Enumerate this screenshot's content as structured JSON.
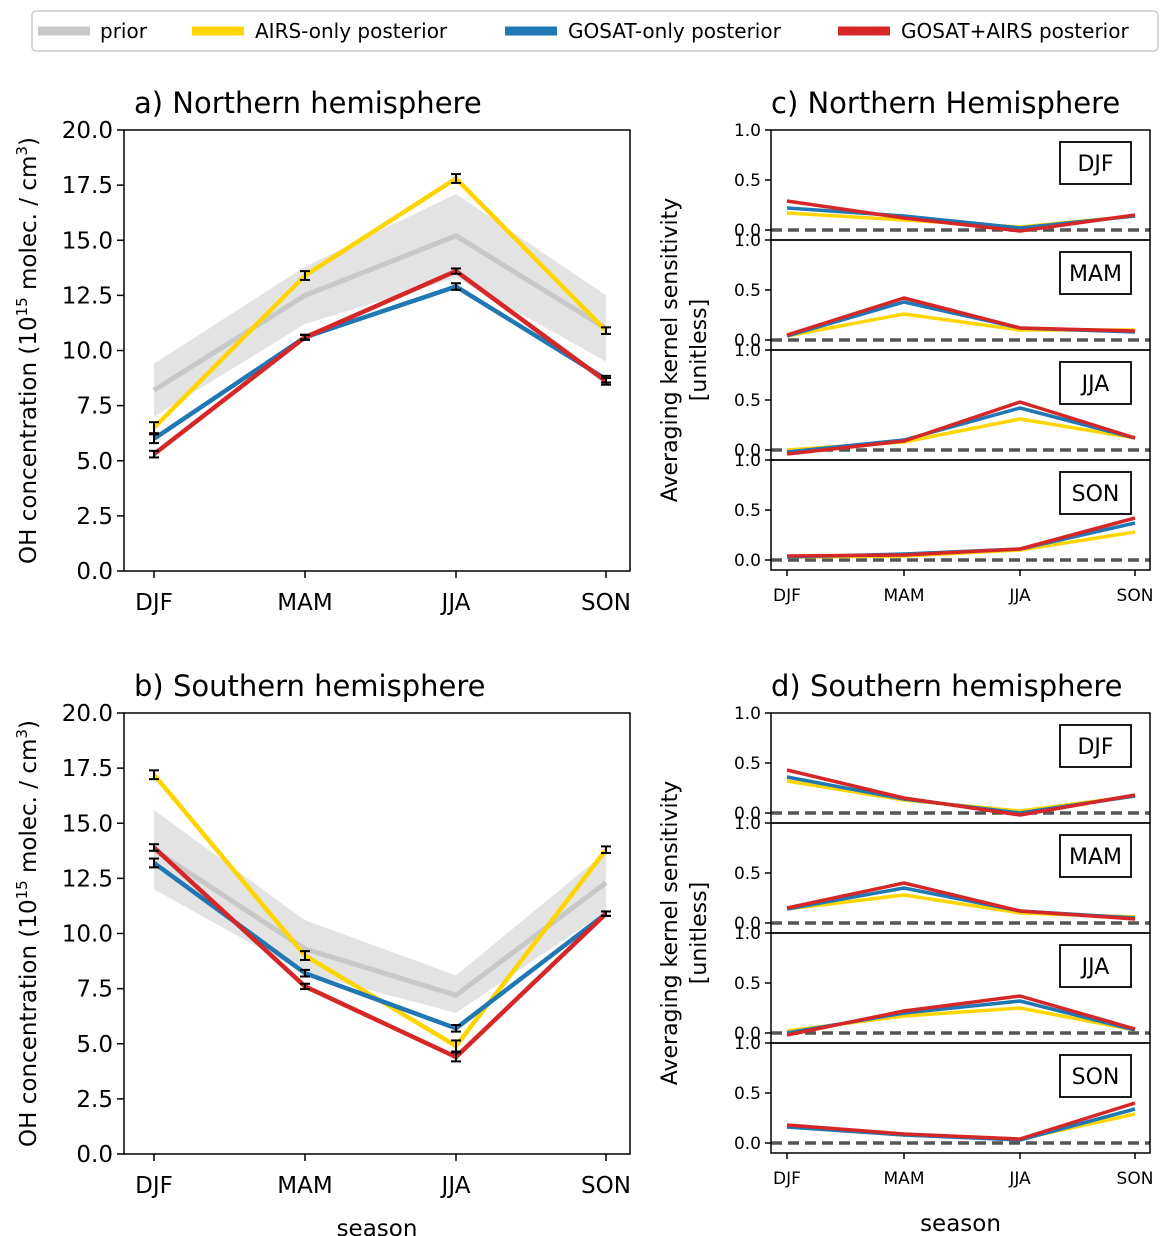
{
  "colors": {
    "prior": "#c8c8c8",
    "prior_band": "#e3e3e3",
    "airs": "#ffd500",
    "gosat": "#1f77b4",
    "both": "#d62728",
    "ref_line": "#555555"
  },
  "legend": [
    {
      "key": "prior",
      "label": "prior"
    },
    {
      "key": "airs",
      "label": "AIRS-only posterior"
    },
    {
      "key": "gosat",
      "label": "GOSAT-only posterior"
    },
    {
      "key": "both",
      "label": "GOSAT+AIRS posterior"
    }
  ],
  "chart_data": [
    {
      "id": "panel-a",
      "type": "line",
      "title": "a) Northern hemisphere",
      "xlabel": "",
      "ylabel": "OH concentration (10^15 molec. / cm^3)",
      "ylabel_base": "OH concentration (10",
      "ylabel_exp1": "15",
      "ylabel_mid": " molec. / cm",
      "ylabel_exp2": "3",
      "ylabel_end": ")",
      "categories": [
        "DJF",
        "MAM",
        "JJA",
        "SON"
      ],
      "ylim": [
        0,
        20
      ],
      "yticks": [
        "0.0",
        "2.5",
        "5.0",
        "7.5",
        "10.0",
        "12.5",
        "15.0",
        "17.5",
        "20.0"
      ],
      "prior": {
        "values": [
          8.2,
          12.5,
          15.2,
          11.0
        ],
        "band_low": [
          7.0,
          11.2,
          13.3,
          9.5
        ],
        "band_high": [
          9.4,
          13.8,
          17.1,
          12.5
        ]
      },
      "series": [
        {
          "key": "airs",
          "values": [
            6.5,
            13.4,
            17.8,
            10.9
          ],
          "err": [
            0.25,
            0.2,
            0.2,
            0.15
          ]
        },
        {
          "key": "gosat",
          "values": [
            6.0,
            10.6,
            12.9,
            8.7
          ],
          "err": [
            0.2,
            0.12,
            0.15,
            0.15
          ]
        },
        {
          "key": "both",
          "values": [
            5.3,
            10.6,
            13.6,
            8.6
          ],
          "err": [
            0.15,
            0.1,
            0.12,
            0.15
          ]
        }
      ]
    },
    {
      "id": "panel-b",
      "type": "line",
      "title": "b) Southern hemisphere",
      "xlabel": "season",
      "ylabel": "OH concentration (10^15 molec. / cm^3)",
      "ylabel_base": "OH concentration (10",
      "ylabel_exp1": "15",
      "ylabel_mid": " molec. / cm",
      "ylabel_exp2": "3",
      "ylabel_end": ")",
      "categories": [
        "DJF",
        "MAM",
        "JJA",
        "SON"
      ],
      "ylim": [
        0,
        20
      ],
      "yticks": [
        "0.0",
        "2.5",
        "5.0",
        "7.5",
        "10.0",
        "12.5",
        "15.0",
        "17.5",
        "20.0"
      ],
      "prior": {
        "values": [
          13.8,
          9.3,
          7.2,
          12.3
        ],
        "band_low": [
          12.0,
          8.2,
          6.4,
          11.0
        ],
        "band_high": [
          15.6,
          10.6,
          8.1,
          13.7
        ]
      },
      "series": [
        {
          "key": "airs",
          "values": [
            17.2,
            9.0,
            4.9,
            13.8
          ],
          "err": [
            0.2,
            0.2,
            0.25,
            0.15
          ]
        },
        {
          "key": "gosat",
          "values": [
            13.2,
            8.2,
            5.7,
            10.9
          ],
          "err": [
            0.2,
            0.15,
            0.15,
            0.1
          ]
        },
        {
          "key": "both",
          "values": [
            13.9,
            7.6,
            4.4,
            10.9
          ],
          "err": [
            0.15,
            0.12,
            0.2,
            0.1
          ]
        }
      ]
    },
    {
      "id": "panel-c",
      "type": "line",
      "title": "c) Northern Hemisphere",
      "xlabel": "",
      "ylabel_line1": "Averaging kernel sensitivity",
      "ylabel_line2": "[unitless]",
      "categories": [
        "DJF",
        "MAM",
        "JJA",
        "SON"
      ],
      "ylim": [
        -0.1,
        1.0
      ],
      "yticks": [
        "0.0",
        "0.5",
        "1.0"
      ],
      "subplots": [
        {
          "label": "DJF",
          "series": [
            {
              "key": "airs",
              "values": [
                0.17,
                0.1,
                0.03,
                0.14
              ]
            },
            {
              "key": "gosat",
              "values": [
                0.22,
                0.14,
                0.02,
                0.14
              ]
            },
            {
              "key": "both",
              "values": [
                0.29,
                0.12,
                -0.01,
                0.15
              ]
            }
          ]
        },
        {
          "label": "MAM",
          "series": [
            {
              "key": "airs",
              "values": [
                0.04,
                0.26,
                0.1,
                0.1
              ]
            },
            {
              "key": "gosat",
              "values": [
                0.04,
                0.38,
                0.12,
                0.08
              ]
            },
            {
              "key": "both",
              "values": [
                0.05,
                0.42,
                0.12,
                0.09
              ]
            }
          ]
        },
        {
          "label": "JJA",
          "series": [
            {
              "key": "airs",
              "values": [
                0.0,
                0.08,
                0.31,
                0.12
              ]
            },
            {
              "key": "gosat",
              "values": [
                -0.02,
                0.1,
                0.42,
                0.12
              ]
            },
            {
              "key": "both",
              "values": [
                -0.04,
                0.09,
                0.48,
                0.12
              ]
            }
          ]
        },
        {
          "label": "SON",
          "series": [
            {
              "key": "airs",
              "values": [
                0.03,
                0.04,
                0.1,
                0.28
              ]
            },
            {
              "key": "gosat",
              "values": [
                0.03,
                0.06,
                0.11,
                0.37
              ]
            },
            {
              "key": "both",
              "values": [
                0.04,
                0.05,
                0.11,
                0.42
              ]
            }
          ]
        }
      ]
    },
    {
      "id": "panel-d",
      "type": "line",
      "title": "d) Southern hemisphere",
      "xlabel": "season",
      "ylabel_line1": "Averaging kernel sensitivity",
      "ylabel_line2": "[unitless]",
      "categories": [
        "DJF",
        "MAM",
        "JJA",
        "SON"
      ],
      "ylim": [
        -0.1,
        1.0
      ],
      "yticks": [
        "0.0",
        "0.5",
        "1.0"
      ],
      "subplots": [
        {
          "label": "DJF",
          "series": [
            {
              "key": "airs",
              "values": [
                0.32,
                0.13,
                0.02,
                0.17
              ]
            },
            {
              "key": "gosat",
              "values": [
                0.36,
                0.14,
                0.0,
                0.17
              ]
            },
            {
              "key": "both",
              "values": [
                0.43,
                0.15,
                -0.02,
                0.18
              ]
            }
          ]
        },
        {
          "label": "MAM",
          "series": [
            {
              "key": "airs",
              "values": [
                0.14,
                0.28,
                0.1,
                0.06
              ]
            },
            {
              "key": "gosat",
              "values": [
                0.14,
                0.35,
                0.12,
                0.05
              ]
            },
            {
              "key": "both",
              "values": [
                0.15,
                0.4,
                0.12,
                0.04
              ]
            }
          ]
        },
        {
          "label": "JJA",
          "series": [
            {
              "key": "airs",
              "values": [
                0.02,
                0.17,
                0.25,
                0.03
              ]
            },
            {
              "key": "gosat",
              "values": [
                0.0,
                0.2,
                0.32,
                0.03
              ]
            },
            {
              "key": "both",
              "values": [
                -0.02,
                0.22,
                0.37,
                0.04
              ]
            }
          ]
        },
        {
          "label": "SON",
          "series": [
            {
              "key": "airs",
              "values": [
                0.16,
                0.08,
                0.04,
                0.29
              ]
            },
            {
              "key": "gosat",
              "values": [
                0.16,
                0.08,
                0.03,
                0.34
              ]
            },
            {
              "key": "both",
              "values": [
                0.18,
                0.09,
                0.04,
                0.4
              ]
            }
          ]
        }
      ]
    }
  ]
}
